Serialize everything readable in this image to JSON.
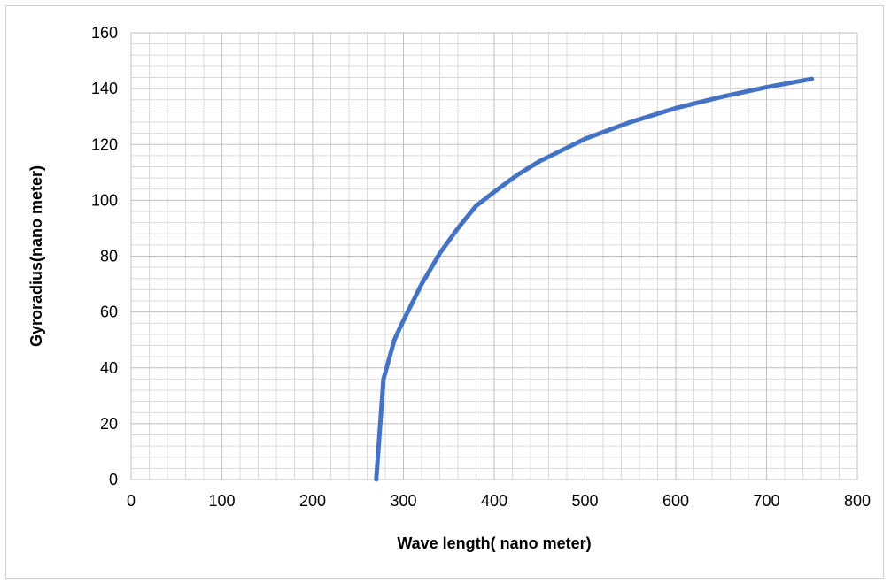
{
  "chart_data": {
    "type": "line",
    "title": "",
    "xlabel": "Wave length( nano meter)",
    "ylabel": "Gyroradius(nano meter)",
    "xlim": [
      0,
      800
    ],
    "ylim": [
      0,
      160
    ],
    "x_ticks": [
      0,
      100,
      200,
      300,
      400,
      500,
      600,
      700,
      800
    ],
    "y_ticks": [
      0,
      20,
      40,
      60,
      80,
      100,
      120,
      140,
      160
    ],
    "x_tick_labels": [
      "0",
      "100",
      "200",
      "300",
      "400",
      "500",
      "600",
      "700",
      "800"
    ],
    "y_tick_labels": [
      "0",
      "20",
      "40",
      "60",
      "80",
      "100",
      "120",
      "140",
      "160"
    ],
    "grid": "major and minor",
    "legend": "none",
    "line_color": "#4472C4",
    "series": [
      {
        "x": [
          270,
          278,
          290,
          300,
          320,
          340,
          360,
          380,
          400,
          425,
          450,
          475,
          500,
          550,
          600,
          650,
          700,
          750
        ],
        "y": [
          0,
          36,
          50,
          57,
          70,
          81,
          90,
          98,
          103,
          109,
          114,
          118,
          122,
          128,
          133,
          137,
          140.5,
          143.5
        ]
      }
    ]
  }
}
